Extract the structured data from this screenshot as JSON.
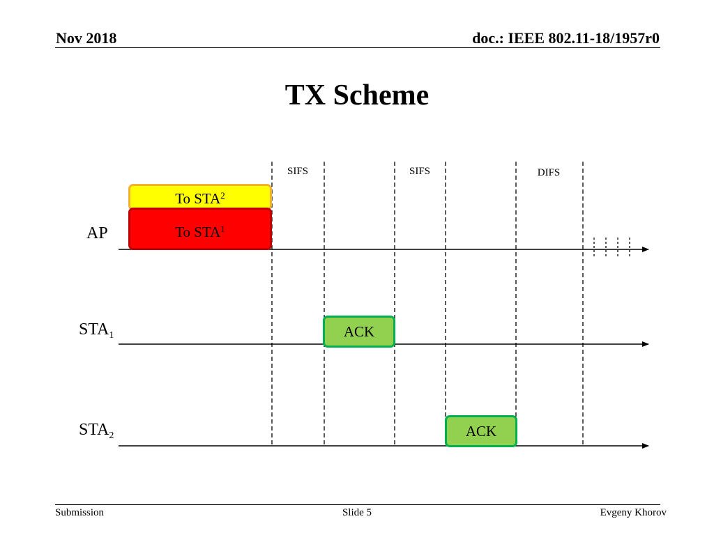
{
  "header": {
    "date": "Nov 2018",
    "doc": "doc.: IEEE 802.11-18/1957r0"
  },
  "title": "TX Scheme",
  "gaps": [
    "SIFS",
    "SIFS",
    "DIFS"
  ],
  "rows": {
    "ap": {
      "label": "AP"
    },
    "sta1": {
      "label": "STA",
      "sub": "1"
    },
    "sta2": {
      "label": "STA",
      "sub": "2"
    }
  },
  "frames": {
    "to_sta2": {
      "label": "To STA",
      "sub": "2",
      "color": "#ffff00"
    },
    "to_sta1": {
      "label": "To STA",
      "sub": "1",
      "color": "#ff0000"
    },
    "ack_sta1": {
      "label": "ACK",
      "color": "#92d050"
    },
    "ack_sta2": {
      "label": "ACK",
      "color": "#92d050"
    }
  },
  "footer": {
    "left": "Submission",
    "center": "Slide 5",
    "right": "Evgeny Khorov"
  }
}
